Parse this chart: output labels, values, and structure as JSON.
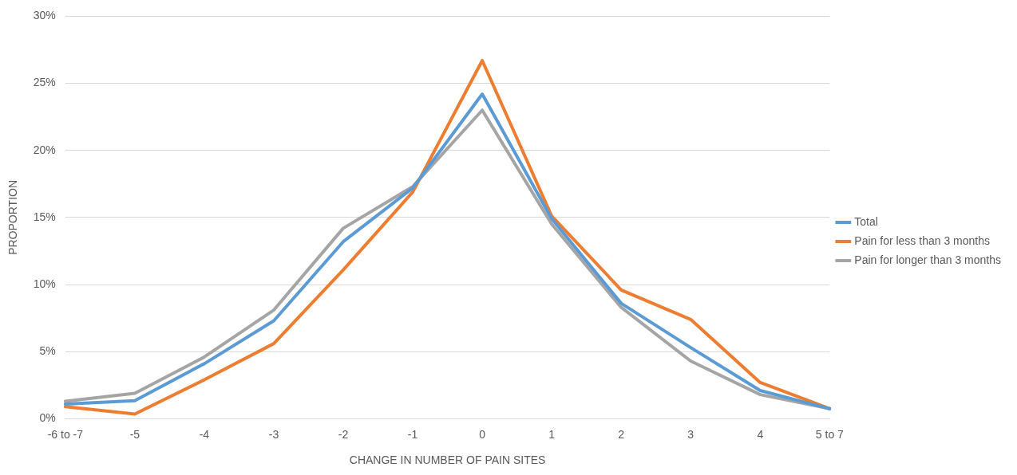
{
  "chart_data": {
    "type": "line",
    "xlabel": "CHANGE IN NUMBER OF PAIN SITES",
    "ylabel": "PROPORTION",
    "categories": [
      "-6 to -7",
      "-5",
      "-4",
      "-3",
      "-2",
      "-1",
      "0",
      "1",
      "2",
      "3",
      "4",
      "5 to 7"
    ],
    "series": [
      {
        "name": "Total",
        "color": "#5b9bd5",
        "values": [
          1.1,
          1.35,
          4.1,
          7.3,
          13.2,
          17.2,
          24.2,
          14.9,
          8.6,
          5.3,
          2.1,
          0.75
        ]
      },
      {
        "name": "Pain for less than 3 months",
        "color": "#ed7d31",
        "values": [
          0.9,
          0.35,
          2.9,
          5.6,
          11.1,
          16.9,
          26.7,
          15.1,
          9.6,
          7.4,
          2.7,
          0.75
        ]
      },
      {
        "name": "Pain for longer than 3 months",
        "color": "#a5a5a5",
        "values": [
          1.3,
          1.9,
          4.6,
          8.1,
          14.2,
          17.3,
          23.0,
          14.5,
          8.3,
          4.3,
          1.8,
          0.75
        ]
      }
    ],
    "ylim": [
      0,
      30
    ],
    "yticks": [
      {
        "value": 0,
        "label": "0%"
      },
      {
        "value": 5,
        "label": "5%"
      },
      {
        "value": 10,
        "label": "10%"
      },
      {
        "value": 15,
        "label": "15%"
      },
      {
        "value": 20,
        "label": "20%"
      },
      {
        "value": 25,
        "label": "25%"
      },
      {
        "value": 30,
        "label": "30%"
      }
    ],
    "grid": "y",
    "legend": "right",
    "marker": "none",
    "line_style": "solid"
  }
}
